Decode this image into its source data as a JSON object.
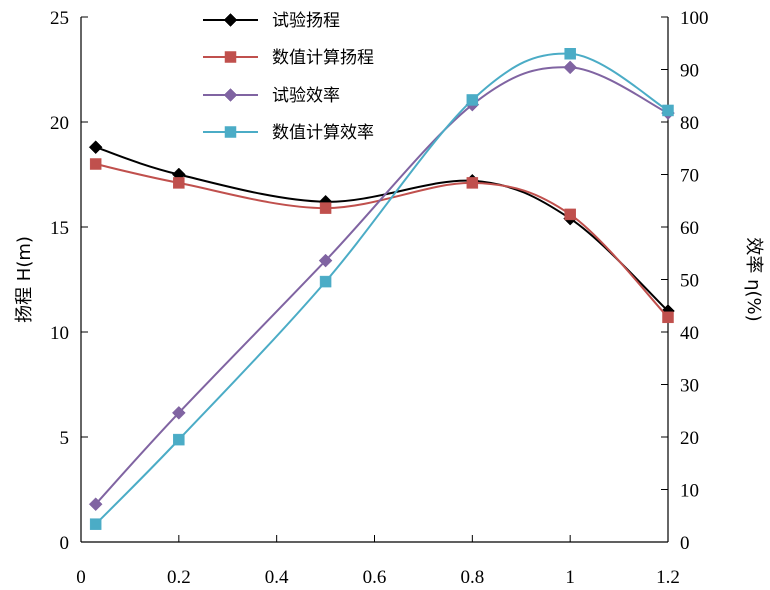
{
  "chart_data": {
    "type": "line",
    "x": [
      0.03,
      0.2,
      0.5,
      0.8,
      1.0,
      1.2
    ],
    "xlim": [
      0,
      1.2
    ],
    "x_ticks": [
      0,
      0.2,
      0.4,
      0.6,
      0.8,
      1,
      1.2
    ],
    "x_tick_labels": [
      "0",
      "0.2",
      "0.4",
      "0.6",
      "0.8",
      "1",
      "1.2"
    ],
    "ylabel": "扬程 H(m)",
    "ylim": [
      0,
      25
    ],
    "y_ticks": [
      0,
      5,
      10,
      15,
      20,
      25
    ],
    "y_tick_labels": [
      "0",
      "5",
      "10",
      "15",
      "20",
      "25"
    ],
    "y2label": "效率 η(%)",
    "y2lim": [
      0,
      100
    ],
    "y2_ticks": [
      0,
      10,
      20,
      30,
      40,
      50,
      60,
      70,
      80,
      90,
      100
    ],
    "y2_tick_labels": [
      "0",
      "10",
      "20",
      "30",
      "40",
      "50",
      "60",
      "70",
      "80",
      "90",
      "100"
    ],
    "grid": false,
    "legend_position": "top-center",
    "series": [
      {
        "name": "试验扬程",
        "axis": "left",
        "color": "#000000",
        "marker": "diamond",
        "values": [
          18.8,
          17.5,
          16.2,
          17.2,
          15.4,
          11.0
        ]
      },
      {
        "name": "数值计算扬程",
        "axis": "left",
        "color": "#c0504d",
        "marker": "square",
        "values": [
          18.0,
          17.1,
          15.9,
          17.1,
          15.6,
          10.7
        ]
      },
      {
        "name": "试验效率",
        "axis": "right",
        "color": "#8064a2",
        "marker": "diamond",
        "values": [
          7.2,
          24.6,
          53.6,
          83.3,
          90.4,
          81.7
        ]
      },
      {
        "name": "数值计算效率",
        "axis": "right",
        "color": "#4bacc6",
        "marker": "square",
        "values": [
          3.4,
          19.5,
          49.6,
          84.2,
          93.0,
          82.2
        ]
      }
    ]
  }
}
